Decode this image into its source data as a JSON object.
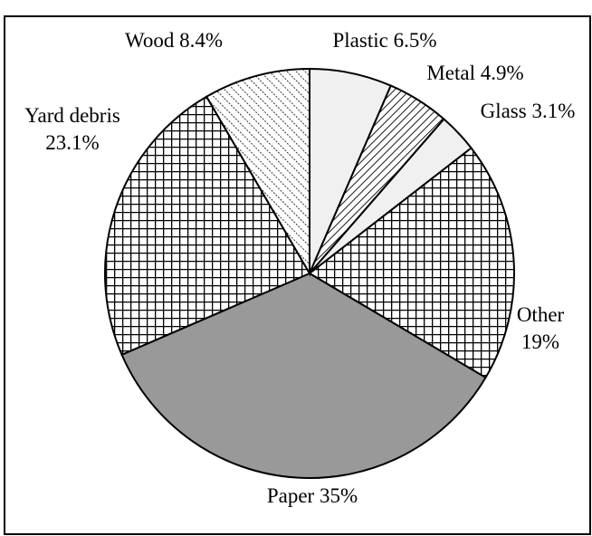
{
  "chart_data": {
    "type": "pie",
    "categories": [
      "Plastic",
      "Metal",
      "Glass",
      "Other",
      "Paper",
      "Yard debris",
      "Wood"
    ],
    "values": [
      6.5,
      4.9,
      3.1,
      19,
      35,
      23.1,
      8.4
    ],
    "value_labels": [
      "6.5%",
      "4.9%",
      "3.1%",
      "19%",
      "35%",
      "23.1%",
      "8.4%"
    ],
    "colors": [
      "#f0f0f0",
      "#ffffff",
      "#f0f0f0",
      "#ffffff",
      "#999999",
      "#ffffff",
      "#ffffff"
    ],
    "patterns": [
      "solid",
      "diagonal",
      "solid",
      "grid",
      "solid",
      "grid",
      "dotted-diagonal"
    ]
  }
}
